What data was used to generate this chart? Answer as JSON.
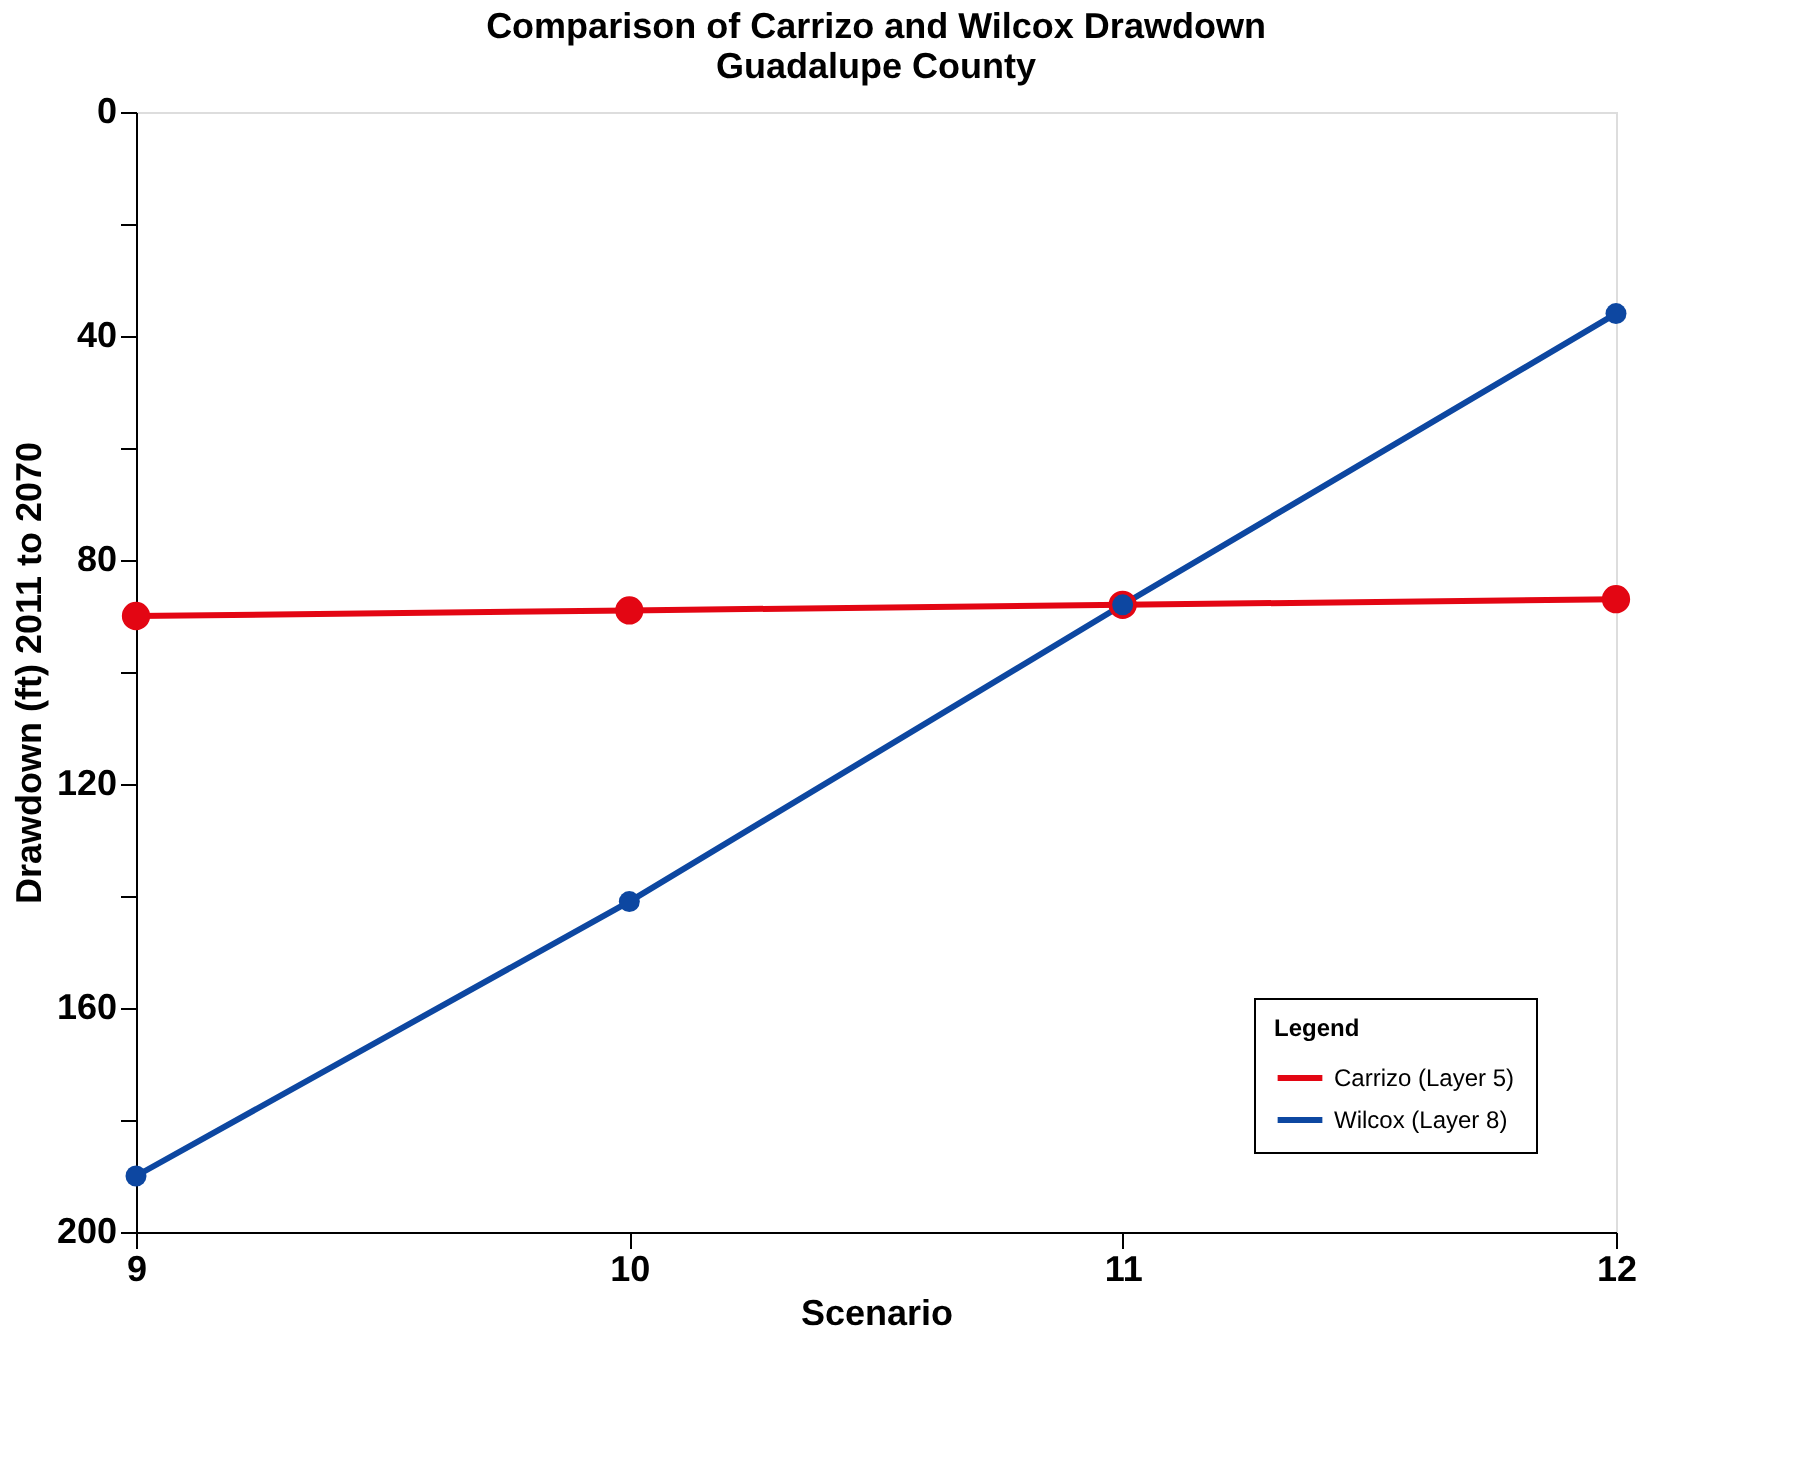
{
  "chart_data": {
    "type": "line",
    "title": "Comparison of Carrizo and Wilcox Drawdown",
    "subtitle": "Guadalupe County",
    "xlabel": "Scenario",
    "ylabel": "Drawdown (ft) 2011 to 2070",
    "x": [
      9,
      10,
      11,
      12
    ],
    "series": [
      {
        "name": "Carrizo (Layer 5)",
        "color": "#e30613",
        "values": [
          90,
          89,
          88,
          87
        ]
      },
      {
        "name": "Wilcox (Layer 8)",
        "color": "#0d47a1",
        "values": [
          190,
          141,
          88,
          36
        ]
      }
    ],
    "xlim": [
      9,
      12
    ],
    "xticks": [
      9,
      10,
      11,
      12
    ],
    "ylim": [
      200,
      0
    ],
    "yticks": [
      0,
      {
        "value": 20,
        "label": null
      },
      40,
      {
        "value": 60,
        "label": null
      },
      80,
      {
        "value": 100,
        "label": null
      },
      120,
      {
        "value": 140,
        "label": null
      },
      160,
      {
        "value": 180,
        "label": null
      },
      200
    ],
    "legend_title": "Legend",
    "legend": "bottom right",
    "grid": false,
    "marker": "circle",
    "line_style": "solid"
  }
}
